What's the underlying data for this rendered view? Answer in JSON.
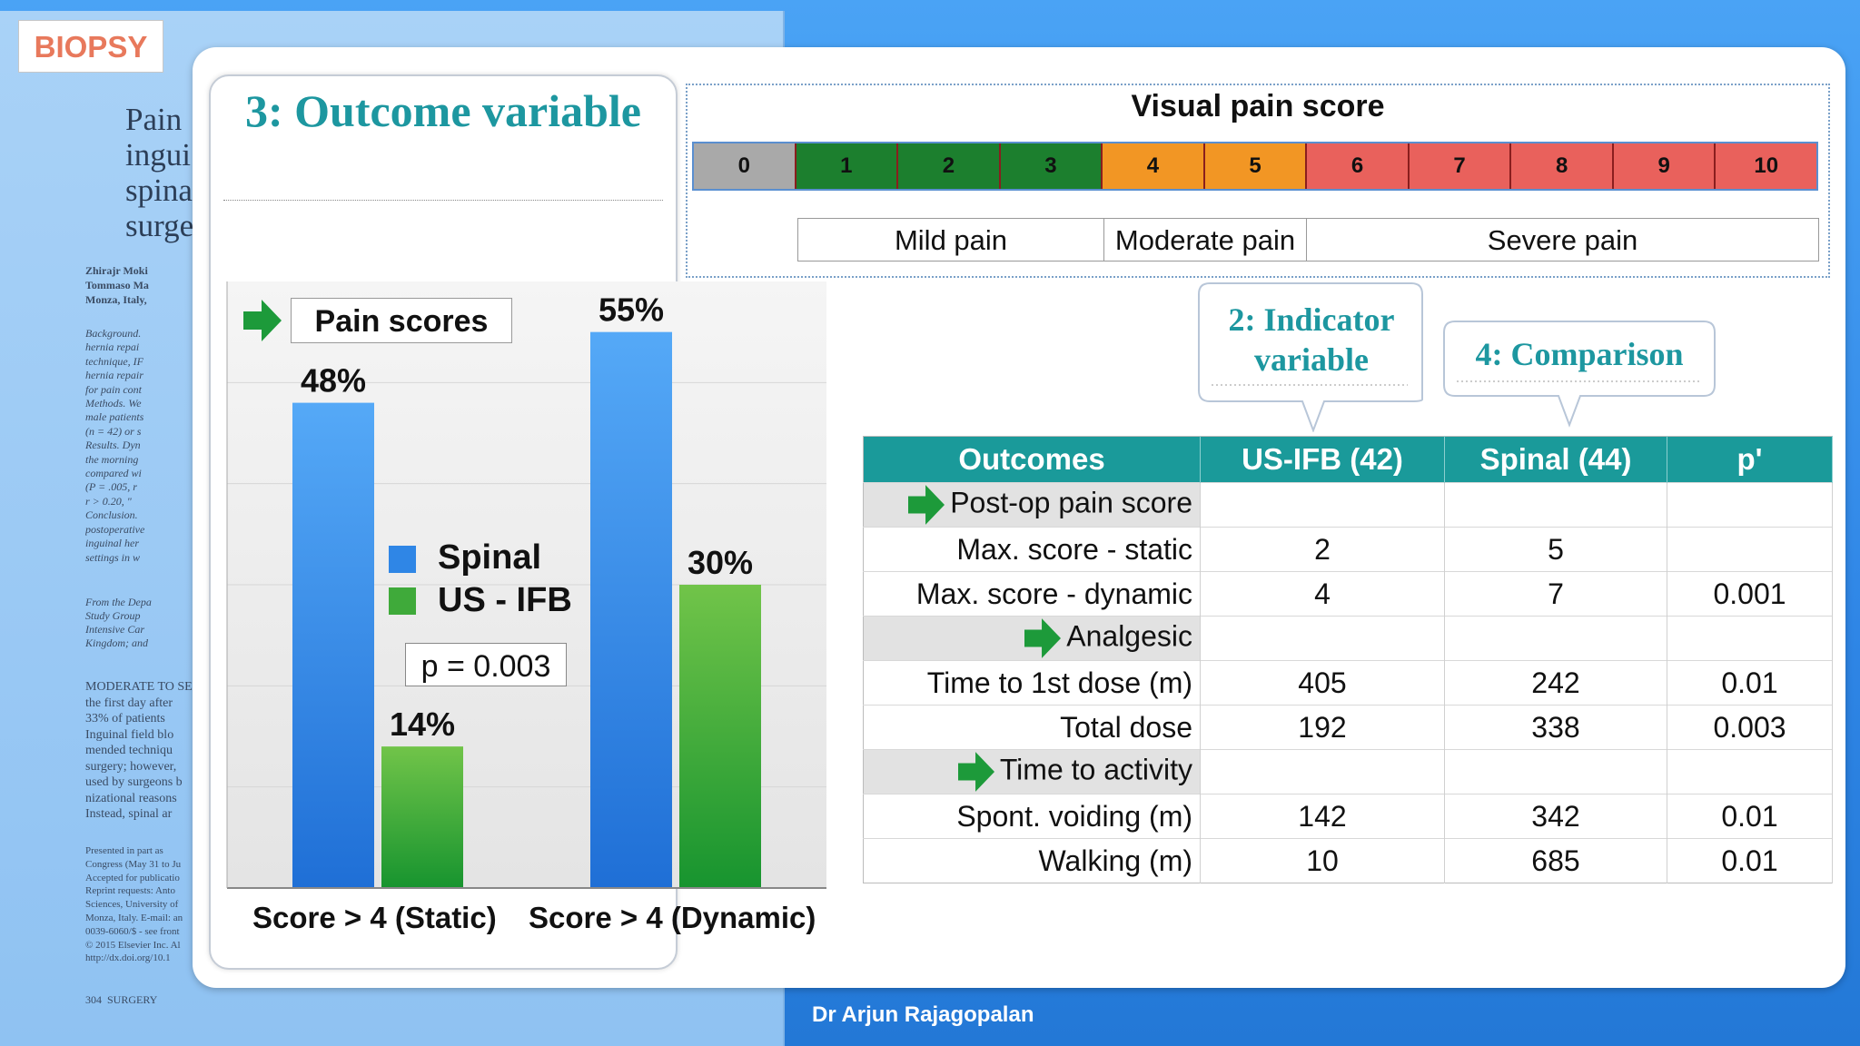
{
  "badge": "BIOPSY",
  "footer": "Dr Arjun Rajagopalan",
  "article": {
    "title_fragment": "Pain\ningui\nspina\nsurge",
    "authors_fragment": "Zhirajr Moki\nTommaso Ma\nMonza, Italy,",
    "abstract_fragment": "Background.\nhernia repai\ntechnique, IF\nhernia repair\nfor pain cont\nMethods. We\nmale patients\n(n = 42) or s\nResults. Dyn\nthe morning\ncompared wi\n(P = .005, r\nr > 0.20, \"\nConclusion.\npostoperative\ninguinal her\nsettings in w",
    "affil_fragment": "From the Depa\nStudy Group\nIntensive Car\nKingdom; and",
    "body_fragment": "MODERATE TO SEVERE\nthe first day after\n33% of patients\nInguinal field blo\nmended techniqu\nsurgery; however,\nused by surgeons b\nnizational reasons\nInstead, spinal ar",
    "notes_fragment": "Presented in part as\nCongress (May 31 to Ju\nAccepted for publicatio\nReprint requests: Anto\nSciences, University of\nMonza, Italy. E-mail: an\n0039-6060/$ - see front\n© 2015 Elsevier Inc. Al\nhttp://dx.doi.org/10.1",
    "page_footer": "304  SURGERY"
  },
  "outcome_panel": {
    "title": "3: Outcome variable"
  },
  "chart_data": {
    "type": "bar",
    "title": "Pain scores",
    "categories": [
      "Score > 4 (Static)",
      "Score > 4 (Dynamic)"
    ],
    "series": [
      {
        "name": "Spinal",
        "values": [
          48,
          55
        ],
        "color": "#3a8ee6"
      },
      {
        "name": "US - IFB",
        "values": [
          14,
          30
        ],
        "color": "#4caf3a"
      }
    ],
    "value_suffix": "%",
    "ylim": [
      0,
      60
    ],
    "annotation": "p = 0.003",
    "legend_position": "center"
  },
  "visual_pain_score": {
    "title": "Visual pain score",
    "levels": [
      {
        "label": "0",
        "color": "#a9a9a9"
      },
      {
        "label": "1",
        "color": "#1c7f2e"
      },
      {
        "label": "2",
        "color": "#1c7f2e"
      },
      {
        "label": "3",
        "color": "#1c7f2e"
      },
      {
        "label": "4",
        "color": "#f29624"
      },
      {
        "label": "5",
        "color": "#f29624"
      },
      {
        "label": "6",
        "color": "#e9615c"
      },
      {
        "label": "7",
        "color": "#e9615c"
      },
      {
        "label": "8",
        "color": "#e9615c"
      },
      {
        "label": "9",
        "color": "#e9615c"
      },
      {
        "label": "10",
        "color": "#e9615c"
      }
    ],
    "bands": [
      "Mild pain",
      "Moderate pain",
      "Severe pain"
    ]
  },
  "callouts": {
    "indicator": "2: Indicator variable",
    "comparison": "4: Comparison"
  },
  "table": {
    "headers": [
      "Outcomes",
      "US-IFB (42)",
      "Spinal (44)",
      "p'"
    ],
    "rows": [
      {
        "label": "Post-op pain score",
        "section": true,
        "usifb": "",
        "spinal": "",
        "p": ""
      },
      {
        "label": "Max. score - static",
        "section": false,
        "usifb": "2",
        "spinal": "5",
        "p": ""
      },
      {
        "label": "Max. score - dynamic",
        "section": false,
        "usifb": "4",
        "spinal": "7",
        "p": "0.001"
      },
      {
        "label": "Analgesic",
        "section": true,
        "usifb": "",
        "spinal": "",
        "p": ""
      },
      {
        "label": "Time to 1st dose (m)",
        "section": false,
        "usifb": "405",
        "spinal": "242",
        "p": "0.01"
      },
      {
        "label": "Total dose",
        "section": false,
        "usifb": "192",
        "spinal": "338",
        "p": "0.003"
      },
      {
        "label": "Time to activity",
        "section": true,
        "usifb": "",
        "spinal": "",
        "p": ""
      },
      {
        "label": "Spont. voiding (m)",
        "section": false,
        "usifb": "142",
        "spinal": "342",
        "p": "0.01"
      },
      {
        "label": "Walking (m)",
        "section": false,
        "usifb": "10",
        "spinal": "685",
        "p": "0.01"
      }
    ]
  }
}
